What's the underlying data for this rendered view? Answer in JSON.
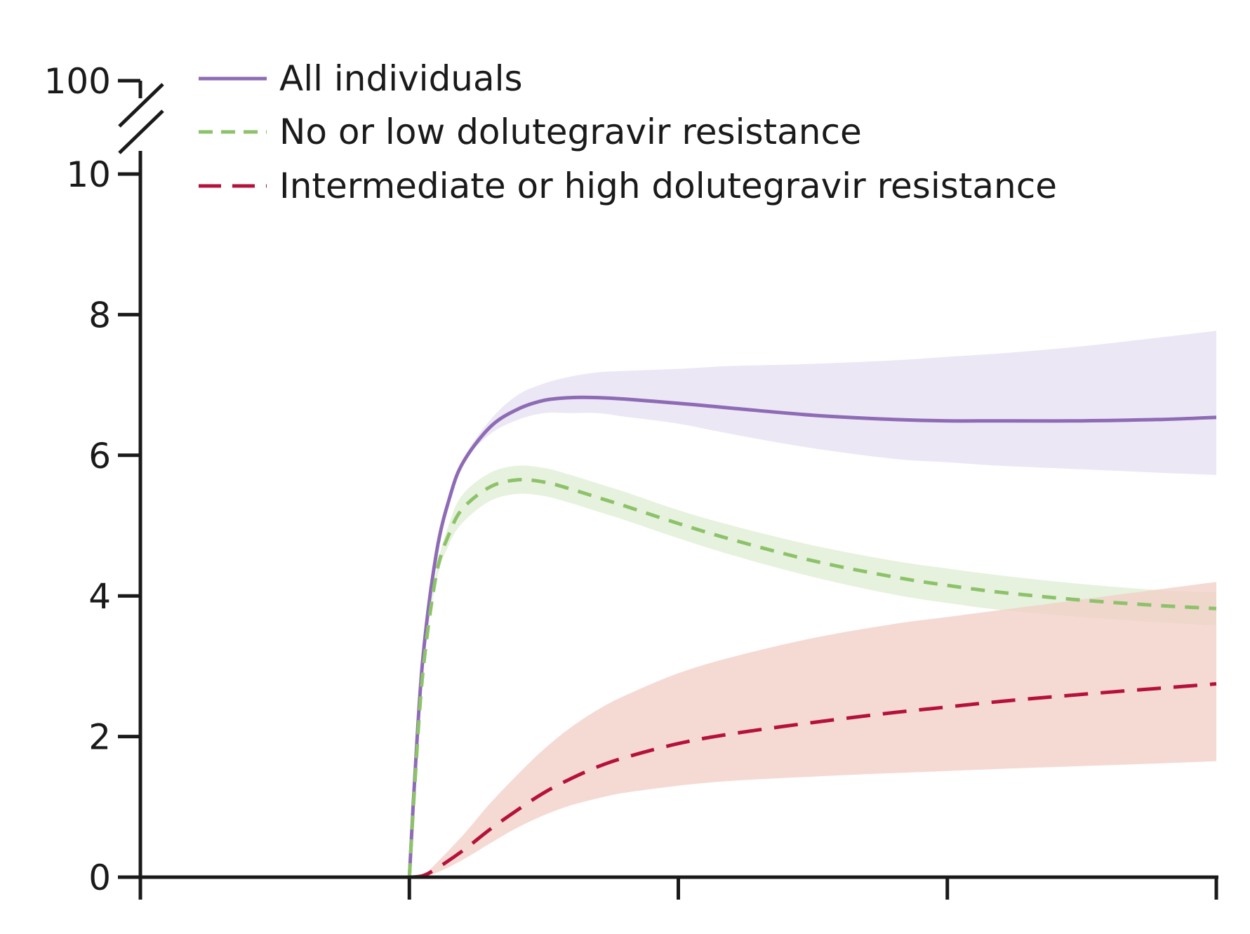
{
  "chart_data": {
    "type": "line",
    "title": "",
    "xlabel": "",
    "ylabel": "",
    "x_ticks": 5,
    "xlim": [
      0,
      4
    ],
    "ylim": [
      0,
      10
    ],
    "y_tick_values": [
      0,
      2,
      4,
      6,
      8,
      10
    ],
    "y_tick_labels": [
      "0",
      "2",
      "4",
      "6",
      "8",
      "10"
    ],
    "y_break_label": "100",
    "grid": false,
    "legend_placement": "top-left",
    "series": [
      {
        "name": "All individuals",
        "color": "#8e6bb5",
        "band_color": "#e6dff0",
        "style": "solid",
        "x": [
          1.0,
          1.02,
          1.05,
          1.1,
          1.15,
          1.2,
          1.3,
          1.4,
          1.5,
          1.6,
          1.7,
          1.8,
          2.0,
          2.2,
          2.5,
          2.8,
          3.0,
          3.2,
          3.5,
          3.8,
          4.0
        ],
        "y": [
          0.0,
          1.4,
          3.1,
          4.6,
          5.4,
          5.9,
          6.4,
          6.65,
          6.78,
          6.82,
          6.82,
          6.8,
          6.74,
          6.67,
          6.57,
          6.51,
          6.49,
          6.49,
          6.49,
          6.51,
          6.54
        ],
        "lower": [
          0.0,
          1.4,
          3.1,
          4.6,
          5.4,
          5.9,
          6.3,
          6.5,
          6.6,
          6.6,
          6.6,
          6.55,
          6.45,
          6.3,
          6.1,
          5.95,
          5.9,
          5.85,
          5.8,
          5.75,
          5.72
        ],
        "upper": [
          0.0,
          1.4,
          3.1,
          4.6,
          5.4,
          5.95,
          6.5,
          6.85,
          7.02,
          7.12,
          7.18,
          7.2,
          7.23,
          7.27,
          7.3,
          7.35,
          7.4,
          7.45,
          7.55,
          7.68,
          7.77
        ]
      },
      {
        "name": "No or low dolutegravir resistance",
        "color": "#8dc26b",
        "band_color": "#deeed2",
        "style": "short-dash",
        "x": [
          1.0,
          1.02,
          1.05,
          1.1,
          1.15,
          1.2,
          1.3,
          1.4,
          1.5,
          1.6,
          1.7,
          1.8,
          2.0,
          2.2,
          2.5,
          2.8,
          3.0,
          3.2,
          3.5,
          3.8,
          4.0
        ],
        "y": [
          0.0,
          1.3,
          2.9,
          4.3,
          4.9,
          5.25,
          5.55,
          5.65,
          5.62,
          5.52,
          5.4,
          5.28,
          5.03,
          4.8,
          4.5,
          4.27,
          4.15,
          4.05,
          3.94,
          3.86,
          3.82
        ],
        "lower": [
          0.0,
          1.3,
          2.9,
          4.2,
          4.75,
          5.05,
          5.35,
          5.45,
          5.42,
          5.32,
          5.2,
          5.08,
          4.82,
          4.58,
          4.27,
          4.02,
          3.9,
          3.8,
          3.7,
          3.62,
          3.58
        ],
        "upper": [
          0.0,
          1.3,
          2.9,
          4.35,
          5.05,
          5.45,
          5.75,
          5.85,
          5.82,
          5.72,
          5.6,
          5.48,
          5.22,
          5.0,
          4.72,
          4.5,
          4.39,
          4.29,
          4.17,
          4.08,
          4.05
        ]
      },
      {
        "name": "Intermediate or high dolutegravir resistance",
        "color": "#b5123b",
        "band_color": "#f2cdc6",
        "style": "long-dash",
        "x": [
          1.0,
          1.05,
          1.1,
          1.2,
          1.3,
          1.4,
          1.5,
          1.6,
          1.7,
          1.8,
          2.0,
          2.2,
          2.5,
          2.8,
          3.0,
          3.2,
          3.5,
          3.8,
          4.0
        ],
        "y": [
          0.0,
          0.02,
          0.12,
          0.38,
          0.68,
          0.95,
          1.2,
          1.4,
          1.57,
          1.7,
          1.9,
          2.04,
          2.2,
          2.34,
          2.42,
          2.5,
          2.6,
          2.69,
          2.75
        ],
        "lower": [
          0.0,
          0.01,
          0.06,
          0.25,
          0.48,
          0.7,
          0.88,
          1.02,
          1.12,
          1.2,
          1.3,
          1.37,
          1.43,
          1.48,
          1.51,
          1.54,
          1.58,
          1.62,
          1.65
        ],
        "upper": [
          0.0,
          0.03,
          0.2,
          0.6,
          1.05,
          1.45,
          1.82,
          2.13,
          2.38,
          2.58,
          2.9,
          3.13,
          3.4,
          3.6,
          3.7,
          3.8,
          3.95,
          4.1,
          4.2
        ]
      }
    ]
  }
}
